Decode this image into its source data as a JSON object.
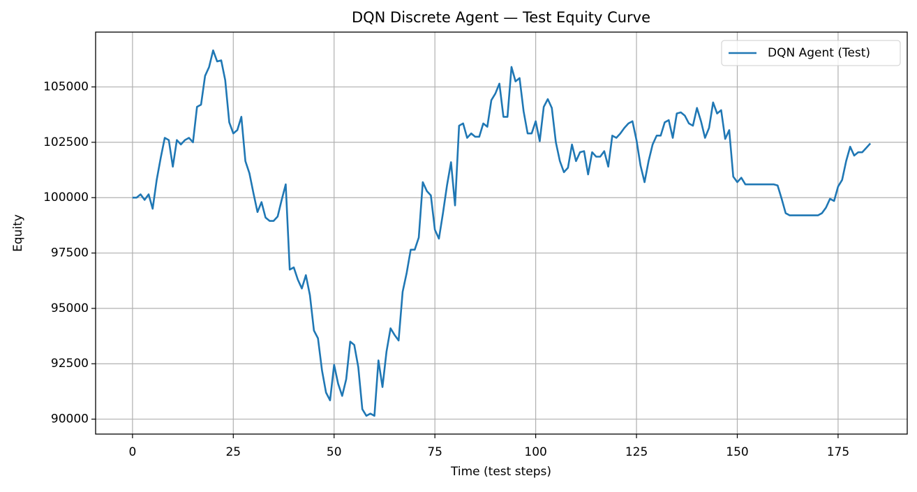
{
  "chart_data": {
    "type": "line",
    "title": "DQN Discrete Agent — Test Equity Curve",
    "x_label": "Time (test steps)",
    "y_label": "Equity",
    "x": [
      0,
      1,
      2,
      3,
      4,
      5,
      6,
      7,
      8,
      9,
      10,
      11,
      12,
      13,
      14,
      15,
      16,
      17,
      18,
      19,
      20,
      21,
      22,
      23,
      24,
      25,
      26,
      27,
      28,
      29,
      30,
      31,
      32,
      33,
      34,
      35,
      36,
      37,
      38,
      39,
      40,
      41,
      42,
      43,
      44,
      45,
      46,
      47,
      48,
      49,
      50,
      51,
      52,
      53,
      54,
      55,
      56,
      57,
      58,
      59,
      60,
      61,
      62,
      63,
      64,
      65,
      66,
      67,
      68,
      69,
      70,
      71,
      72,
      73,
      74,
      75,
      76,
      77,
      78,
      79,
      80,
      81,
      82,
      83,
      84,
      85,
      86,
      87,
      88,
      89,
      90,
      91,
      92,
      93,
      94,
      95,
      96,
      97,
      98,
      99,
      100,
      101,
      102,
      103,
      104,
      105,
      106,
      107,
      108,
      109,
      110,
      111,
      112,
      113,
      114,
      115,
      116,
      117,
      118,
      119,
      120,
      121,
      122,
      123,
      124,
      125,
      126,
      127,
      128,
      129,
      130,
      131,
      132,
      133,
      134,
      135,
      136,
      137,
      138,
      139,
      140,
      141,
      142,
      143,
      144,
      145,
      146,
      147,
      148,
      149,
      150,
      151,
      152,
      153,
      154,
      155,
      156,
      157,
      158,
      159,
      160,
      161,
      162,
      163,
      164,
      165,
      166,
      167,
      168,
      169,
      170,
      171,
      172,
      173,
      174,
      175,
      176,
      177,
      178,
      179,
      180,
      181,
      182,
      183
    ],
    "series": [
      {
        "name": "DQN Agent (Test)",
        "color": "#1f77b4",
        "values": [
          100000,
          100000,
          100150,
          99900,
          100150,
          99500,
          100800,
          101800,
          102700,
          102600,
          101400,
          102600,
          102400,
          102600,
          102700,
          102500,
          104100,
          104200,
          105500,
          105900,
          106650,
          106150,
          106200,
          105300,
          103400,
          102900,
          103050,
          103650,
          101650,
          101100,
          100200,
          99350,
          99800,
          99100,
          98950,
          98950,
          99150,
          99900,
          100600,
          96750,
          96850,
          96300,
          95900,
          96500,
          95600,
          94000,
          93650,
          92200,
          91200,
          90850,
          92450,
          91600,
          91050,
          91800,
          93500,
          93350,
          92350,
          90450,
          90150,
          90250,
          90150,
          92650,
          91450,
          93050,
          94100,
          93800,
          93550,
          95750,
          96600,
          97650,
          97650,
          98200,
          100700,
          100300,
          100100,
          98550,
          98150,
          99300,
          100550,
          101600,
          99650,
          103250,
          103350,
          102700,
          102900,
          102750,
          102750,
          103350,
          103200,
          104400,
          104700,
          105150,
          103650,
          103650,
          105900,
          105250,
          105400,
          103900,
          102900,
          102900,
          103450,
          102550,
          104100,
          104450,
          104050,
          102500,
          101650,
          101150,
          101350,
          102400,
          101650,
          102050,
          102100,
          101050,
          102050,
          101850,
          101850,
          102100,
          101400,
          102800,
          102700,
          102900,
          103150,
          103350,
          103450,
          102600,
          101450,
          100700,
          101650,
          102400,
          102800,
          102800,
          103400,
          103500,
          102700,
          103800,
          103850,
          103700,
          103350,
          103250,
          104050,
          103450,
          102700,
          103150,
          104300,
          103800,
          103950,
          102650,
          103050,
          100950,
          100700,
          100900,
          100600,
          100600,
          100600,
          100600,
          100600,
          100600,
          100600,
          100600,
          100550,
          99950,
          99300,
          99200,
          99200,
          99200,
          99200,
          99200,
          99200,
          99200,
          99200,
          99300,
          99550,
          99950,
          99850,
          100500,
          100800,
          101650,
          102300,
          101900,
          102050,
          102050,
          102250,
          102450
        ]
      }
    ],
    "xlim": [
      -9.15,
      192.15
    ],
    "xticks": [
      0,
      25,
      50,
      75,
      100,
      125,
      150,
      175
    ],
    "ylim": [
      89325,
      107475
    ],
    "yticks": [
      90000,
      92500,
      95000,
      97500,
      100000,
      102500,
      105000
    ],
    "grid": true,
    "legend": "upper right"
  }
}
